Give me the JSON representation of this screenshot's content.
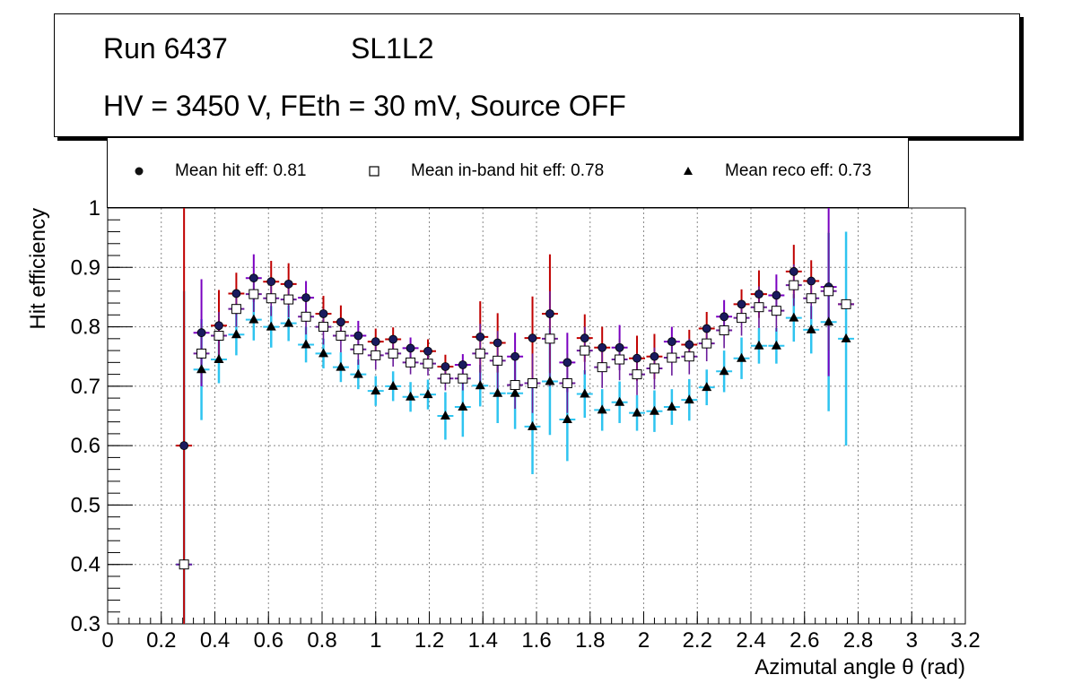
{
  "header": {
    "run": "Run 6437",
    "layer": "SL1L2",
    "conditions": "HV = 3450 V, FEth = 30 mV, Source OFF"
  },
  "legend": {
    "items": [
      {
        "label": "Mean hit  eff: 0.81",
        "marker": "filled-circle"
      },
      {
        "label": "Mean in-band hit eff: 0.78",
        "marker": "open-square"
      },
      {
        "label": "Mean reco eff: 0.73",
        "marker": "filled-triangle"
      }
    ]
  },
  "colors": {
    "hit_err": "#c00000",
    "hit_err_alt": "#7a00c0",
    "hit_marker": "#1a1a5e",
    "inband_err": "#6a1a9a",
    "inband_fill": "#ffffff",
    "reco_err": "#2ec4f0",
    "reco_marker": "#000000",
    "grid": "#888888"
  },
  "chart_data": {
    "type": "scatter",
    "xlabel": "Azimutal angle θ (rad)",
    "ylabel": "Hit efficiency",
    "xlim": [
      0,
      3.2
    ],
    "ylim": [
      0.3,
      1.0
    ],
    "xticks": [
      "0",
      "0.2",
      "0.4",
      "0.6",
      "0.8",
      "1",
      "1.2",
      "1.4",
      "1.6",
      "1.8",
      "2",
      "2.2",
      "2.4",
      "2.6",
      "2.8",
      "3",
      "3.2"
    ],
    "yticks": [
      "0.3",
      "0.4",
      "0.5",
      "0.6",
      "0.7",
      "0.8",
      "0.9",
      "1"
    ],
    "grid": true,
    "x_half_width": 0.03,
    "x": [
      0.285,
      0.35,
      0.415,
      0.48,
      0.545,
      0.61,
      0.675,
      0.74,
      0.805,
      0.87,
      0.935,
      1.0,
      1.065,
      1.13,
      1.195,
      1.26,
      1.325,
      1.39,
      1.455,
      1.52,
      1.585,
      1.65,
      1.715,
      1.78,
      1.845,
      1.91,
      1.975,
      2.04,
      2.105,
      2.17,
      2.235,
      2.3,
      2.365,
      2.43,
      2.495,
      2.56,
      2.625,
      2.69,
      2.755
    ],
    "series": [
      {
        "name": "hit",
        "values": [
          0.6,
          0.79,
          0.802,
          0.856,
          0.882,
          0.876,
          0.872,
          0.849,
          0.822,
          0.808,
          0.785,
          0.775,
          0.779,
          0.764,
          0.759,
          0.733,
          0.736,
          0.783,
          0.773,
          0.75,
          0.781,
          0.822,
          0.74,
          0.781,
          0.765,
          0.765,
          0.747,
          0.75,
          0.775,
          0.77,
          0.797,
          0.817,
          0.838,
          0.855,
          0.853,
          0.893,
          0.877,
          0.867,
          0.838
        ],
        "err": [
          0.4,
          0.09,
          0.06,
          0.035,
          0.04,
          0.035,
          0.035,
          0.028,
          0.03,
          0.028,
          0.025,
          0.022,
          0.02,
          0.018,
          0.02,
          0.02,
          0.018,
          0.06,
          0.05,
          0.04,
          0.07,
          0.1,
          0.05,
          0.04,
          0.035,
          0.038,
          0.038,
          0.038,
          0.025,
          0.025,
          0.028,
          0.028,
          0.025,
          0.04,
          0.035,
          0.045,
          0.035,
          0.15,
          0.0
        ]
      },
      {
        "name": "inband",
        "values": [
          0.4,
          0.755,
          0.785,
          0.83,
          0.855,
          0.848,
          0.846,
          0.817,
          0.8,
          0.785,
          0.762,
          0.752,
          0.755,
          0.74,
          0.738,
          0.713,
          0.713,
          0.755,
          0.743,
          0.702,
          0.705,
          0.78,
          0.705,
          0.76,
          0.732,
          0.745,
          0.72,
          0.73,
          0.748,
          0.75,
          0.772,
          0.794,
          0.815,
          0.833,
          0.827,
          0.87,
          0.848,
          0.86,
          0.838
        ],
        "err": [
          0.0,
          0.05,
          0.04,
          0.03,
          0.03,
          0.03,
          0.03,
          0.03,
          0.03,
          0.028,
          0.026,
          0.024,
          0.022,
          0.02,
          0.02,
          0.02,
          0.02,
          0.05,
          0.05,
          0.04,
          0.05,
          0.08,
          0.05,
          0.04,
          0.035,
          0.035,
          0.035,
          0.035,
          0.03,
          0.03,
          0.03,
          0.03,
          0.03,
          0.035,
          0.035,
          0.035,
          0.035,
          0.1,
          0.0
        ]
      },
      {
        "name": "reco",
        "values": [
          0.4,
          0.728,
          0.745,
          0.787,
          0.812,
          0.8,
          0.806,
          0.77,
          0.755,
          0.732,
          0.72,
          0.692,
          0.7,
          0.682,
          0.686,
          0.65,
          0.665,
          0.701,
          0.688,
          0.688,
          0.632,
          0.708,
          0.644,
          0.687,
          0.66,
          0.673,
          0.655,
          0.658,
          0.665,
          0.677,
          0.698,
          0.725,
          0.747,
          0.768,
          0.768,
          0.815,
          0.795,
          0.808,
          0.78
        ],
        "err": [
          0.46,
          0.085,
          0.04,
          0.035,
          0.035,
          0.035,
          0.03,
          0.03,
          0.025,
          0.025,
          0.025,
          0.025,
          0.025,
          0.025,
          0.025,
          0.04,
          0.05,
          0.035,
          0.05,
          0.06,
          0.08,
          0.09,
          0.07,
          0.04,
          0.035,
          0.035,
          0.03,
          0.035,
          0.03,
          0.035,
          0.03,
          0.035,
          0.035,
          0.03,
          0.03,
          0.04,
          0.04,
          0.15,
          0.18
        ]
      }
    ]
  }
}
